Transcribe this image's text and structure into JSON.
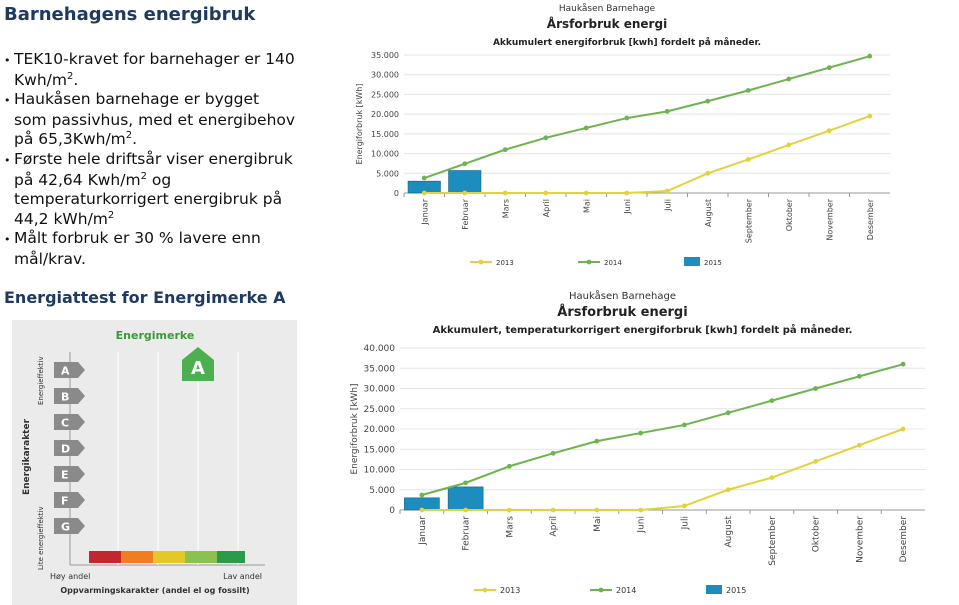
{
  "header": {
    "title": "Barnehagens energibruk"
  },
  "bullets": [
    [
      "TEK10-kravet for barnehager er 140 Kwh/m",
      "2",
      "."
    ],
    [
      "Haukåsen barnehage er bygget som passivhus, med et energibehov på 65,3Kwh/m",
      "2",
      "."
    ],
    [
      "Første hele driftsår viser energibruk på 42,64 Kwh/m",
      "2",
      " og temperaturkorrigert energibruk på 44,2 kWh/m",
      "2"
    ],
    [
      "Målt forbruk er 30 % lavere enn mål/krav."
    ]
  ],
  "section2": {
    "title": "Energiattest for Energimerke A"
  },
  "energy_label": {
    "title": "Energimerke",
    "grade": "A",
    "grades": [
      "A",
      "B",
      "C",
      "D",
      "E",
      "F",
      "G"
    ],
    "y_axis": "Energikarakter",
    "top": "Energieffektiv",
    "bottom": "Lite energieffektiv",
    "left": "Høy andel",
    "right": "Lav andel",
    "x_axis": "Oppvarmingskarakter (andel el og fossilt)"
  },
  "chart_data": [
    {
      "type": "line",
      "supertitle": "Haukåsen Barnehage",
      "title": "Årsforbruk energi",
      "subtitle": "Akkumulert  energiforbruk [kwh] fordelt på måneder.",
      "y_label": "Energiforbruk [kWh]",
      "categories": [
        "Januar",
        "Februar",
        "Mars",
        "April",
        "Mai",
        "Juni",
        "Juli",
        "August",
        "September",
        "Oktober",
        "November",
        "Desember"
      ],
      "ylim": [
        0,
        35000
      ],
      "yticks": [
        0,
        {
          "value": 5000,
          "label": "5.000"
        },
        {
          "value": 10000,
          "label": "10.000"
        },
        {
          "value": 15000,
          "label": "15.000"
        },
        {
          "value": 20000,
          "label": "20.000"
        },
        {
          "value": 25000,
          "label": "25.000"
        },
        {
          "value": 30000,
          "label": "30.000"
        },
        {
          "value": 35000,
          "label": "35.000"
        }
      ],
      "grid": true,
      "series": [
        {
          "name": "2013",
          "type": "line",
          "color": "#e3d23c",
          "values": [
            0,
            0,
            0,
            0,
            0,
            0,
            500,
            5000,
            8500,
            12200,
            15800,
            19500
          ]
        },
        {
          "name": "2014",
          "type": "line",
          "color": "#6db350",
          "values": [
            3800,
            7400,
            11000,
            14000,
            16500,
            19000,
            20700,
            23300,
            26000,
            28900,
            31800,
            34700
          ]
        },
        {
          "name": "2015",
          "type": "bar",
          "color": "#1d8dbf",
          "values": [
            3000,
            5700,
            null,
            null,
            null,
            null,
            null,
            null,
            null,
            null,
            null,
            null
          ]
        }
      ]
    },
    {
      "type": "line",
      "supertitle": "Haukåsen Barnehage",
      "title": "Årsforbruk energi",
      "subtitle": "Akkumulert, temperaturkorrigert energiforbruk [kwh] fordelt på måneder.",
      "y_label": "Energiforbruk [kWh]",
      "categories": [
        "Januar",
        "Februar",
        "Mars",
        "April",
        "Mai",
        "Juni",
        "Juli",
        "August",
        "September",
        "Oktober",
        "November",
        "Desember"
      ],
      "ylim": [
        0,
        40000
      ],
      "yticks": [
        0,
        {
          "value": 5000,
          "label": "5.000"
        },
        {
          "value": 10000,
          "label": "10.000"
        },
        {
          "value": 15000,
          "label": "15.000"
        },
        {
          "value": 20000,
          "label": "20.000"
        },
        {
          "value": 25000,
          "label": "25.000"
        },
        {
          "value": 30000,
          "label": "30.000"
        },
        {
          "value": 35000,
          "label": "35.000"
        },
        {
          "value": 40000,
          "label": "40.000"
        }
      ],
      "grid": true,
      "series": [
        {
          "name": "2013",
          "type": "line",
          "color": "#e3d23c",
          "values": [
            0,
            0,
            0,
            0,
            0,
            0,
            1000,
            5000,
            8000,
            12000,
            16000,
            20000
          ]
        },
        {
          "name": "2014",
          "type": "line",
          "color": "#6db350",
          "values": [
            3700,
            6700,
            10800,
            14000,
            17000,
            19000,
            21000,
            24000,
            27000,
            30000,
            33000,
            36000
          ]
        },
        {
          "name": "2015",
          "type": "bar",
          "color": "#1d8dbf",
          "values": [
            3000,
            5700,
            null,
            null,
            null,
            null,
            null,
            null,
            null,
            null,
            null,
            null
          ]
        }
      ]
    }
  ]
}
